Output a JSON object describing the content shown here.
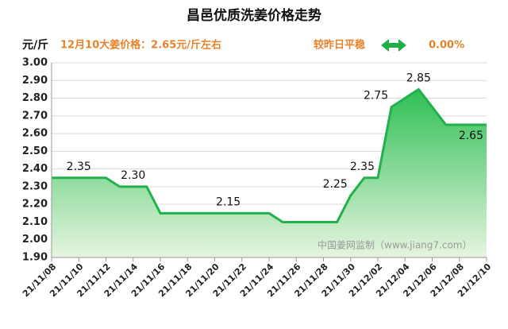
{
  "chart_data": {
    "type": "area",
    "title": "昌邑优质洗姜价格走势",
    "unit": "元/斤",
    "subtitle": "12月10大姜价格：2.65元/斤左右",
    "change_text": "较昨日平稳",
    "change_value": "0.00%",
    "watermark": "中国姜网监制（www.jiang7.com）",
    "categories": [
      "21/11/08",
      null,
      "21/11/10",
      null,
      "21/11/12",
      null,
      "21/11/14",
      null,
      "21/11/16",
      null,
      "21/11/18",
      null,
      "21/11/20",
      null,
      "21/11/22",
      null,
      "21/11/24",
      null,
      "21/11/26",
      null,
      "21/11/28",
      null,
      "21/11/30",
      null,
      "21/12/02",
      null,
      "21/12/04",
      null,
      "21/12/06",
      null,
      "21/12/08",
      null,
      "21/12/10"
    ],
    "series": [
      {
        "color": "#22b14c",
        "values": [
          2.35,
          2.35,
          2.35,
          2.35,
          2.35,
          2.3,
          2.3,
          2.3,
          2.15,
          2.15,
          2.15,
          2.15,
          2.15,
          2.15,
          2.15,
          2.15,
          2.15,
          2.1,
          2.1,
          2.1,
          2.1,
          2.1,
          2.25,
          2.35,
          2.35,
          2.75,
          2.8,
          2.85,
          2.75,
          2.65,
          2.65,
          2.65,
          2.65
        ],
        "value_labels": [
          null,
          null,
          "2.35",
          null,
          null,
          null,
          "2.30",
          null,
          null,
          null,
          null,
          null,
          null,
          "2.15",
          null,
          null,
          null,
          null,
          null,
          null,
          null,
          null,
          "2.25",
          null,
          "2.35",
          "2.75",
          null,
          "2.85",
          null,
          null,
          null,
          null,
          "2.65"
        ]
      }
    ],
    "ylim": [
      1.9,
      3.0
    ],
    "yticks": [
      {
        "value": 1.9,
        "label": "1.90"
      },
      {
        "value": 2.0,
        "label": "2.00"
      },
      {
        "value": 2.1,
        "label": "2.10"
      },
      {
        "value": 2.2,
        "label": "2.20"
      },
      {
        "value": 2.3,
        "label": "2.30"
      },
      {
        "value": 2.4,
        "label": "2.40"
      },
      {
        "value": 2.5,
        "label": "2.50"
      },
      {
        "value": 2.6,
        "label": "2.60"
      },
      {
        "value": 2.7,
        "label": "2.70"
      },
      {
        "value": 2.8,
        "label": "2.80"
      },
      {
        "value": 2.9,
        "label": "2.90"
      },
      {
        "value": 3.0,
        "label": "3.00"
      }
    ],
    "grid": true
  }
}
